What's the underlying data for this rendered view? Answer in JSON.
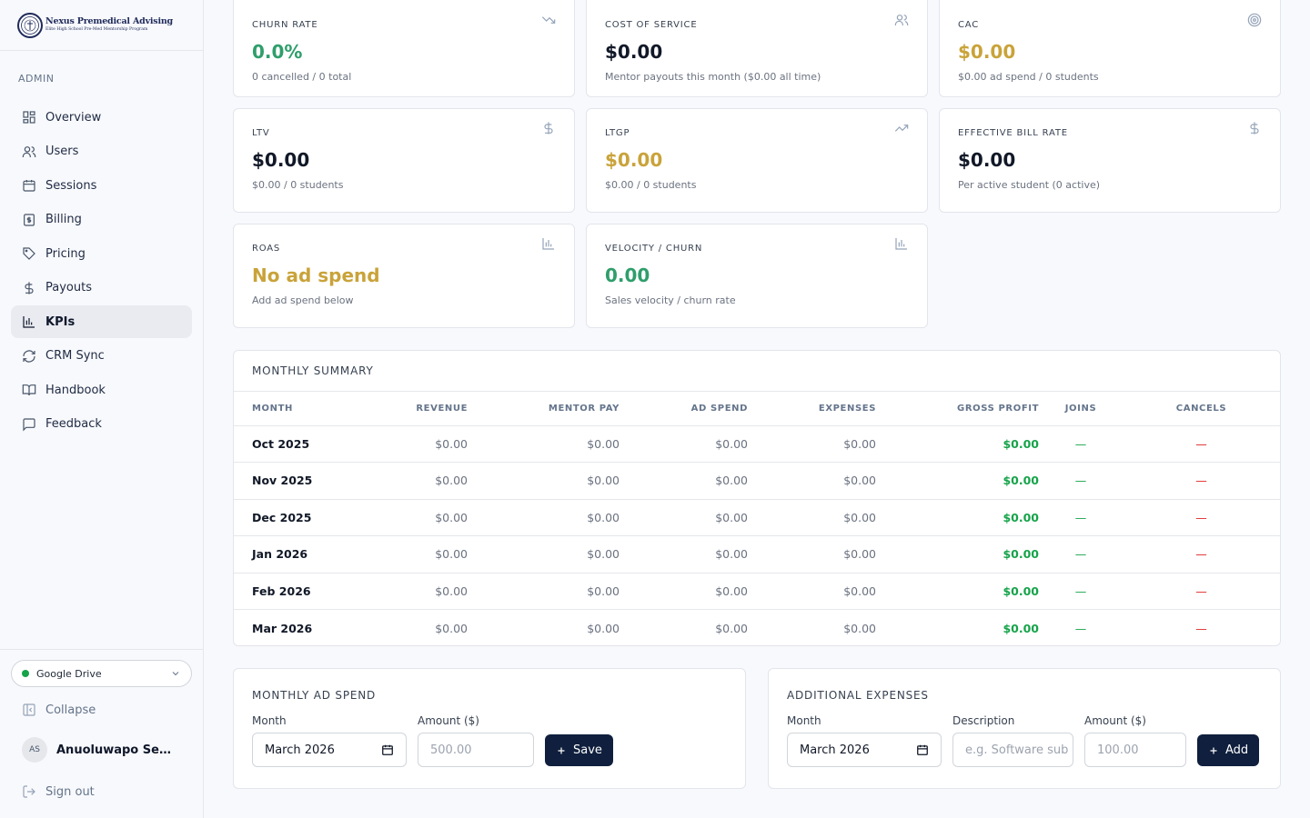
{
  "brand": {
    "name": "Nexus Premedical Advising",
    "tagline": "Elite High School Pre-Med Mentorship Program"
  },
  "sidebar": {
    "section": "ADMIN",
    "items": [
      {
        "label": "Overview",
        "icon": "grid-icon",
        "active": false
      },
      {
        "label": "Users",
        "icon": "users-icon",
        "active": false
      },
      {
        "label": "Sessions",
        "icon": "calendar-icon",
        "active": false
      },
      {
        "label": "Billing",
        "icon": "receipt-icon",
        "active": false
      },
      {
        "label": "Pricing",
        "icon": "tag-icon",
        "active": false
      },
      {
        "label": "Payouts",
        "icon": "dollar-icon",
        "active": false
      },
      {
        "label": "KPIs",
        "icon": "bar-chart-icon",
        "active": true
      },
      {
        "label": "CRM Sync",
        "icon": "refresh-icon",
        "active": false
      },
      {
        "label": "Handbook",
        "icon": "book-icon",
        "active": false
      },
      {
        "label": "Feedback",
        "icon": "message-icon",
        "active": false
      }
    ],
    "drive": {
      "label": "Google Drive",
      "status_color": "#16a34a"
    },
    "collapse_label": "Collapse",
    "user": {
      "initials": "AS",
      "name": "Anuoluwapo Sebiotimo"
    },
    "signout_label": "Sign out"
  },
  "kpis": [
    {
      "label": "CHURN RATE",
      "value": "0.0%",
      "sub": "0 cancelled / 0 total",
      "tone": "green",
      "icon": "trending-down-icon"
    },
    {
      "label": "COST OF SERVICE",
      "value": "$0.00",
      "sub": "Mentor payouts this month ($0.00 all time)",
      "tone": "dark",
      "icon": "users-icon"
    },
    {
      "label": "CAC",
      "value": "$0.00",
      "sub": "$0.00 ad spend / 0 students",
      "tone": "gold",
      "icon": "target-icon"
    },
    {
      "label": "LTV",
      "value": "$0.00",
      "sub": "$0.00 / 0 students",
      "tone": "dark",
      "icon": "dollar-icon"
    },
    {
      "label": "LTGP",
      "value": "$0.00",
      "sub": "$0.00 / 0 students",
      "tone": "gold",
      "icon": "trending-up-icon"
    },
    {
      "label": "EFFECTIVE BILL RATE",
      "value": "$0.00",
      "sub": "Per active student (0 active)",
      "tone": "dark",
      "icon": "dollar-icon"
    },
    {
      "label": "ROAS",
      "value": "No ad spend",
      "sub": "Add ad spend below",
      "tone": "gold",
      "icon": "bar-chart-icon"
    },
    {
      "label": "VELOCITY / CHURN",
      "value": "0.00",
      "sub": "Sales velocity / churn rate",
      "tone": "green",
      "icon": "bar-chart-icon"
    }
  ],
  "summary": {
    "title": "MONTHLY SUMMARY",
    "columns": [
      "MONTH",
      "REVENUE",
      "MENTOR PAY",
      "AD SPEND",
      "EXPENSES",
      "GROSS PROFIT",
      "JOINS",
      "CANCELS"
    ],
    "rows": [
      [
        "Oct 2025",
        "$0.00",
        "$0.00",
        "$0.00",
        "$0.00",
        "$0.00",
        "—",
        "—"
      ],
      [
        "Nov 2025",
        "$0.00",
        "$0.00",
        "$0.00",
        "$0.00",
        "$0.00",
        "—",
        "—"
      ],
      [
        "Dec 2025",
        "$0.00",
        "$0.00",
        "$0.00",
        "$0.00",
        "$0.00",
        "—",
        "—"
      ],
      [
        "Jan 2026",
        "$0.00",
        "$0.00",
        "$0.00",
        "$0.00",
        "$0.00",
        "—",
        "—"
      ],
      [
        "Feb 2026",
        "$0.00",
        "$0.00",
        "$0.00",
        "$0.00",
        "$0.00",
        "—",
        "—"
      ],
      [
        "Mar 2026",
        "$0.00",
        "$0.00",
        "$0.00",
        "$0.00",
        "$0.00",
        "—",
        "—"
      ]
    ]
  },
  "ad_spend": {
    "title": "MONTHLY AD SPEND",
    "month_label": "Month",
    "month_value": "March 2026",
    "amount_label": "Amount ($)",
    "amount_placeholder": "500.00",
    "button": "Save"
  },
  "expenses": {
    "title": "ADDITIONAL EXPENSES",
    "month_label": "Month",
    "month_value": "March 2026",
    "desc_label": "Description",
    "desc_placeholder": "e.g. Software sub",
    "amount_label": "Amount ($)",
    "amount_placeholder": "100.00",
    "button": "Add"
  },
  "colors": {
    "green": "#2f9e6b",
    "gold": "#c9a33a",
    "navy": "#0f1f3d",
    "red": "#dc2626"
  }
}
